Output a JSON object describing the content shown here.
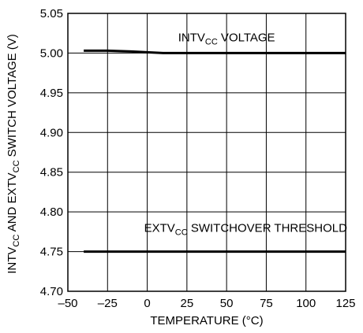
{
  "chart_data": {
    "type": "line",
    "xlabel": "TEMPERATURE (°C)",
    "ylabel": {
      "parts": [
        "INTV",
        "CC",
        " AND EXTV",
        "CC",
        " SWITCH VOLTAGE (V)"
      ]
    },
    "xlim": [
      -50,
      125
    ],
    "ylim": [
      4.7,
      5.05
    ],
    "x_ticks": [
      "–50",
      "–25",
      "0",
      "25",
      "50",
      "75",
      "100",
      "125"
    ],
    "x_tick_values": [
      -50,
      -25,
      0,
      25,
      50,
      75,
      100,
      125
    ],
    "y_ticks": [
      "4.70",
      "4.75",
      "4.80",
      "4.85",
      "4.90",
      "4.95",
      "5.00",
      "5.05"
    ],
    "y_tick_values": [
      4.7,
      4.75,
      4.8,
      4.85,
      4.9,
      4.95,
      5.0,
      5.05
    ],
    "grid": true,
    "series": [
      {
        "name": "INTVCC VOLTAGE",
        "x": [
          -40,
          -25,
          -10,
          0,
          10,
          25,
          50,
          75,
          100,
          125
        ],
        "y": [
          5.003,
          5.003,
          5.002,
          5.001,
          5.0,
          5.0,
          5.0,
          5.0,
          5.0,
          5.0
        ]
      },
      {
        "name": "EXTVCC SWITCHOVER THRESHOLD",
        "x": [
          -40,
          0,
          25,
          50,
          75,
          100,
          125
        ],
        "y": [
          4.75,
          4.75,
          4.75,
          4.75,
          4.75,
          4.75,
          4.75
        ]
      }
    ],
    "annotations": [
      {
        "parts": [
          "INTV",
          "CC",
          " VOLTAGE"
        ],
        "x": 50,
        "y": 5.015
      },
      {
        "parts": [
          "EXTV",
          "CC",
          " SWITCHOVER THRESHOLD"
        ],
        "x": 62,
        "y": 4.775
      }
    ]
  }
}
